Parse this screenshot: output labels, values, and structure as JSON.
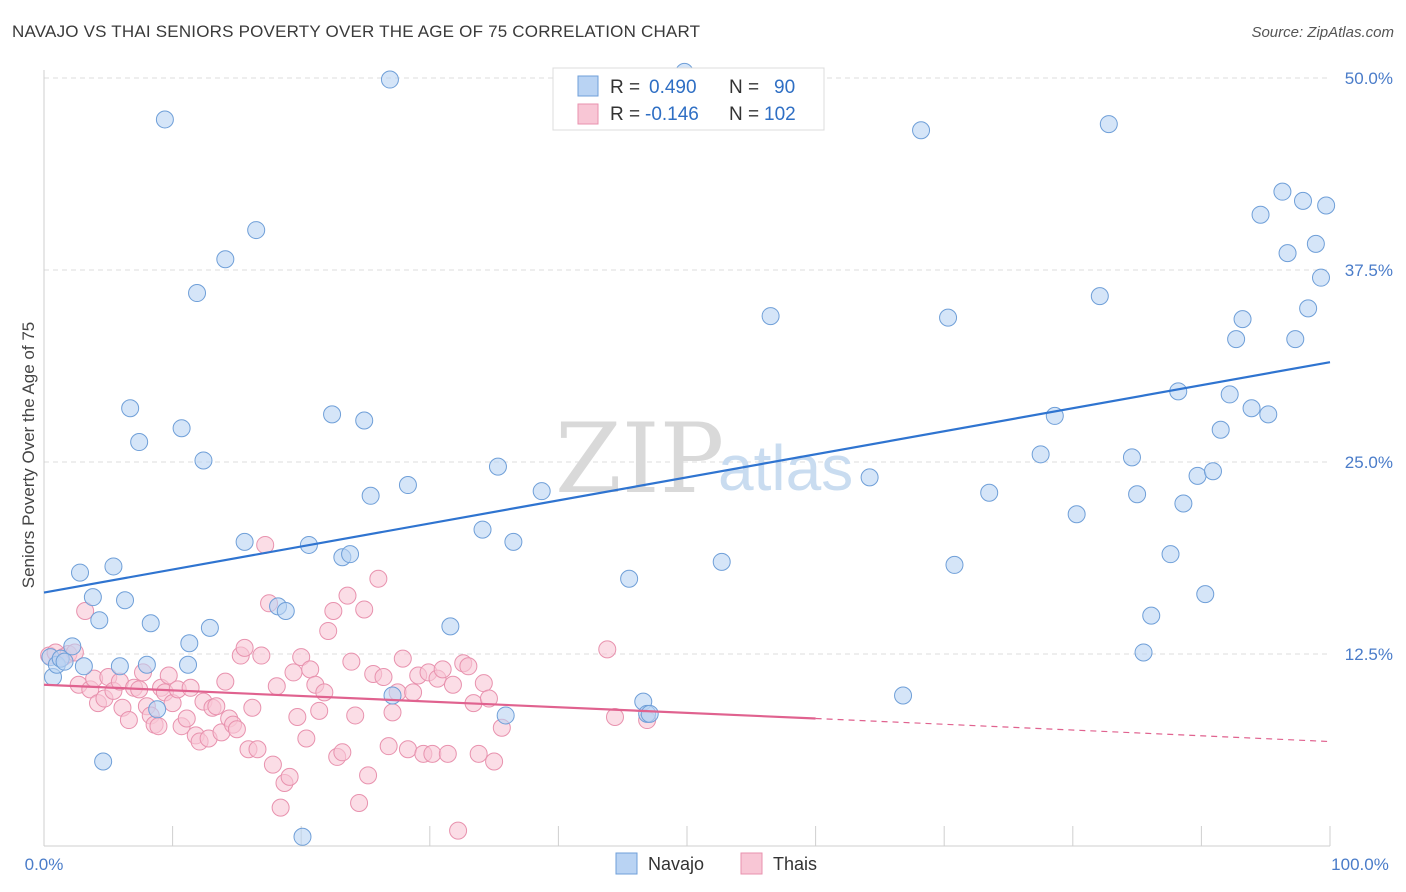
{
  "title": "NAVAJO VS THAI SENIORS POVERTY OVER THE AGE OF 75 CORRELATION CHART",
  "source": "Source: ZipAtlas.com",
  "watermark": {
    "zip": "ZIP",
    "atlas": "atlas"
  },
  "colors": {
    "navajo_fill": "#b9d3f3",
    "navajo_stroke": "#6f9fd8",
    "navajo_line": "#2f74d0",
    "thai_fill": "#f8c6d5",
    "thai_stroke": "#e892ae",
    "thai_line": "#e0628f",
    "tick_label": "#4a7cc9",
    "grid": "#dddddd"
  },
  "legend": {
    "rows": [
      {
        "r_label": "R =",
        "r_value": "0.490",
        "n_label": "N =",
        "n_value": "90"
      },
      {
        "r_label": "R =",
        "r_value": "-0.146",
        "n_label": "N =",
        "n_value": "102"
      }
    ]
  },
  "bottom_legend": [
    "Navajo",
    "Thais"
  ],
  "chart_data": {
    "type": "scatter",
    "ylabel": "Seniors Poverty Over the Age of 75",
    "xlabel": "",
    "xlim": [
      0,
      100
    ],
    "ylim": [
      0,
      50
    ],
    "x_tick_labels": [
      "0.0%",
      "100.0%"
    ],
    "y_ticks": [
      12.5,
      25.0,
      37.5,
      50.0
    ],
    "y_tick_labels": [
      "12.5%",
      "25.0%",
      "37.5%",
      "50.0%"
    ],
    "grid": true,
    "legend_position": "top-center",
    "series": [
      {
        "name": "Navajo",
        "r": 0.49,
        "n": 90,
        "trend": {
          "x0": 0,
          "y0": 16.5,
          "x1": 100,
          "y1": 31.5
        },
        "points": [
          [
            0.5,
            12.3
          ],
          [
            0.7,
            11.0
          ],
          [
            1.0,
            11.8
          ],
          [
            1.3,
            12.2
          ],
          [
            1.6,
            12.0
          ],
          [
            2.2,
            13.0
          ],
          [
            3.1,
            11.7
          ],
          [
            2.8,
            17.8
          ],
          [
            3.8,
            16.2
          ],
          [
            4.3,
            14.7
          ],
          [
            4.6,
            5.5
          ],
          [
            5.4,
            18.2
          ],
          [
            5.9,
            11.7
          ],
          [
            6.3,
            16.0
          ],
          [
            6.7,
            28.5
          ],
          [
            7.4,
            26.3
          ],
          [
            8.0,
            11.8
          ],
          [
            8.3,
            14.5
          ],
          [
            8.8,
            8.9
          ],
          [
            9.4,
            47.3
          ],
          [
            10.7,
            27.2
          ],
          [
            11.2,
            11.8
          ],
          [
            11.3,
            13.2
          ],
          [
            11.9,
            36.0
          ],
          [
            12.4,
            25.1
          ],
          [
            12.9,
            14.2
          ],
          [
            14.1,
            38.2
          ],
          [
            15.6,
            19.8
          ],
          [
            16.5,
            40.1
          ],
          [
            18.2,
            15.6
          ],
          [
            18.8,
            15.3
          ],
          [
            20.1,
            0.6
          ],
          [
            20.6,
            19.6
          ],
          [
            22.4,
            28.1
          ],
          [
            23.2,
            18.8
          ],
          [
            23.8,
            19.0
          ],
          [
            24.9,
            27.7
          ],
          [
            25.4,
            22.8
          ],
          [
            26.9,
            49.9
          ],
          [
            27.1,
            9.8
          ],
          [
            28.3,
            23.5
          ],
          [
            31.6,
            14.3
          ],
          [
            34.1,
            20.6
          ],
          [
            35.3,
            24.7
          ],
          [
            35.9,
            8.5
          ],
          [
            36.5,
            19.8
          ],
          [
            38.7,
            23.1
          ],
          [
            45.5,
            17.4
          ],
          [
            46.6,
            9.4
          ],
          [
            46.9,
            8.6
          ],
          [
            47.1,
            8.6
          ],
          [
            49.8,
            50.4
          ],
          [
            52.7,
            18.5
          ],
          [
            56.5,
            34.5
          ],
          [
            64.2,
            24.0
          ],
          [
            66.8,
            9.8
          ],
          [
            68.2,
            46.6
          ],
          [
            70.3,
            34.4
          ],
          [
            70.8,
            18.3
          ],
          [
            73.5,
            23.0
          ],
          [
            77.5,
            25.5
          ],
          [
            78.6,
            28.0
          ],
          [
            80.3,
            21.6
          ],
          [
            82.1,
            35.8
          ],
          [
            82.8,
            47.0
          ],
          [
            84.6,
            25.3
          ],
          [
            85.0,
            22.9
          ],
          [
            85.5,
            12.6
          ],
          [
            86.1,
            15.0
          ],
          [
            87.6,
            19.0
          ],
          [
            88.2,
            29.6
          ],
          [
            88.6,
            22.3
          ],
          [
            89.7,
            24.1
          ],
          [
            90.3,
            16.4
          ],
          [
            90.9,
            24.4
          ],
          [
            91.5,
            27.1
          ],
          [
            92.2,
            29.4
          ],
          [
            92.7,
            33.0
          ],
          [
            93.2,
            34.3
          ],
          [
            93.9,
            28.5
          ],
          [
            94.6,
            41.1
          ],
          [
            95.2,
            28.1
          ],
          [
            96.3,
            42.6
          ],
          [
            96.7,
            38.6
          ],
          [
            97.3,
            33.0
          ],
          [
            97.9,
            42.0
          ],
          [
            98.3,
            35.0
          ],
          [
            98.9,
            39.2
          ],
          [
            99.3,
            37.0
          ],
          [
            99.7,
            41.7
          ]
        ]
      },
      {
        "name": "Thais",
        "r": -0.146,
        "n": 102,
        "trend": {
          "x0": 0,
          "y0": 10.5,
          "x1": 60,
          "y1": 8.3,
          "dash_x1": 100,
          "dash_y1": 6.8
        },
        "points": [
          [
            0.4,
            12.4
          ],
          [
            0.9,
            12.6
          ],
          [
            1.5,
            12.3
          ],
          [
            1.9,
            12.5
          ],
          [
            2.4,
            12.6
          ],
          [
            2.7,
            10.5
          ],
          [
            3.2,
            15.3
          ],
          [
            3.6,
            10.2
          ],
          [
            3.9,
            10.9
          ],
          [
            4.2,
            9.3
          ],
          [
            4.7,
            9.6
          ],
          [
            5.0,
            11.0
          ],
          [
            5.4,
            10.1
          ],
          [
            5.9,
            10.7
          ],
          [
            6.1,
            9.0
          ],
          [
            6.6,
            8.2
          ],
          [
            7.0,
            10.3
          ],
          [
            7.4,
            10.2
          ],
          [
            7.7,
            11.3
          ],
          [
            8.0,
            9.1
          ],
          [
            8.3,
            8.5
          ],
          [
            8.6,
            7.9
          ],
          [
            8.9,
            7.8
          ],
          [
            9.1,
            10.3
          ],
          [
            9.4,
            10.0
          ],
          [
            9.7,
            11.1
          ],
          [
            10.0,
            9.3
          ],
          [
            10.4,
            10.2
          ],
          [
            10.7,
            7.8
          ],
          [
            11.1,
            8.3
          ],
          [
            11.4,
            10.3
          ],
          [
            11.8,
            7.2
          ],
          [
            12.1,
            6.8
          ],
          [
            12.4,
            9.4
          ],
          [
            12.8,
            7.0
          ],
          [
            13.1,
            9.0
          ],
          [
            13.4,
            9.1
          ],
          [
            13.8,
            7.4
          ],
          [
            14.1,
            10.7
          ],
          [
            14.4,
            8.3
          ],
          [
            14.7,
            7.9
          ],
          [
            15.0,
            7.6
          ],
          [
            15.3,
            12.4
          ],
          [
            15.6,
            12.9
          ],
          [
            15.9,
            6.3
          ],
          [
            16.2,
            9.0
          ],
          [
            16.6,
            6.3
          ],
          [
            16.9,
            12.4
          ],
          [
            17.2,
            19.6
          ],
          [
            17.5,
            15.8
          ],
          [
            17.8,
            5.3
          ],
          [
            18.1,
            10.4
          ],
          [
            18.4,
            2.5
          ],
          [
            18.7,
            4.1
          ],
          [
            19.1,
            4.5
          ],
          [
            19.4,
            11.3
          ],
          [
            19.7,
            8.4
          ],
          [
            20.0,
            12.3
          ],
          [
            20.4,
            7.0
          ],
          [
            20.7,
            11.5
          ],
          [
            21.1,
            10.5
          ],
          [
            21.4,
            8.8
          ],
          [
            21.8,
            10.0
          ],
          [
            22.1,
            14.0
          ],
          [
            22.5,
            15.3
          ],
          [
            22.8,
            5.8
          ],
          [
            23.2,
            6.1
          ],
          [
            23.6,
            16.3
          ],
          [
            23.9,
            12.0
          ],
          [
            24.2,
            8.5
          ],
          [
            24.5,
            2.8
          ],
          [
            24.9,
            15.4
          ],
          [
            25.2,
            4.6
          ],
          [
            25.6,
            11.2
          ],
          [
            26.0,
            17.4
          ],
          [
            26.4,
            11.0
          ],
          [
            26.8,
            6.5
          ],
          [
            27.1,
            8.7
          ],
          [
            27.5,
            10.0
          ],
          [
            27.9,
            12.2
          ],
          [
            28.3,
            6.3
          ],
          [
            28.7,
            10.0
          ],
          [
            29.1,
            11.1
          ],
          [
            29.5,
            6.0
          ],
          [
            29.9,
            11.3
          ],
          [
            30.2,
            6.0
          ],
          [
            30.6,
            10.9
          ],
          [
            31.0,
            11.5
          ],
          [
            31.4,
            6.0
          ],
          [
            31.8,
            10.5
          ],
          [
            32.2,
            1.0
          ],
          [
            32.6,
            11.9
          ],
          [
            33.0,
            11.7
          ],
          [
            33.4,
            9.3
          ],
          [
            33.8,
            6.0
          ],
          [
            34.2,
            10.6
          ],
          [
            34.6,
            9.6
          ],
          [
            35.0,
            5.5
          ],
          [
            35.6,
            7.7
          ],
          [
            43.8,
            12.8
          ],
          [
            44.4,
            8.4
          ],
          [
            46.9,
            8.2
          ]
        ]
      }
    ]
  }
}
